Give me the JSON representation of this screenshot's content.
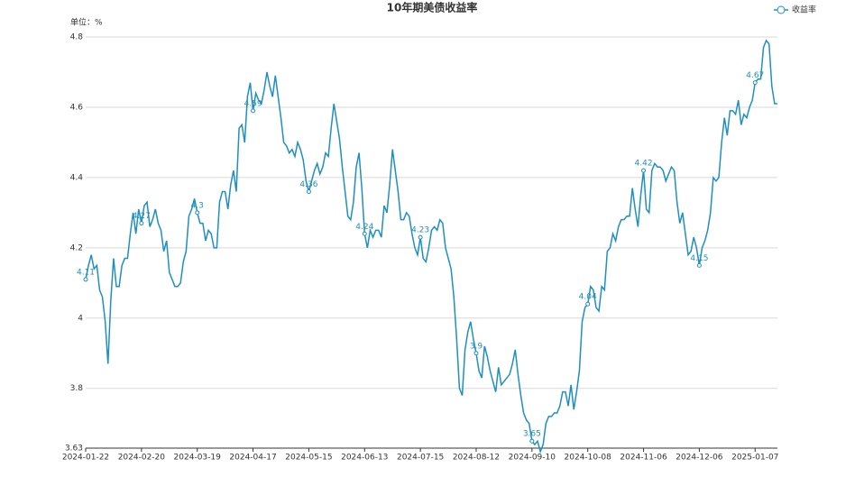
{
  "chart_data": {
    "type": "line",
    "title": "10年期美债收益率",
    "y_label": "单位：%",
    "categories": [
      "2024-01-22",
      null,
      null,
      null,
      null,
      null,
      null,
      null,
      null,
      null,
      null,
      null,
      null,
      null,
      null,
      null,
      null,
      null,
      null,
      null,
      "2024-02-20",
      null,
      null,
      null,
      null,
      null,
      null,
      null,
      null,
      null,
      null,
      null,
      null,
      null,
      null,
      null,
      null,
      null,
      null,
      null,
      "2024-03-19",
      null,
      null,
      null,
      null,
      null,
      null,
      null,
      null,
      null,
      null,
      null,
      null,
      null,
      null,
      null,
      null,
      null,
      null,
      null,
      "2024-04-17",
      null,
      null,
      null,
      null,
      null,
      null,
      null,
      null,
      null,
      null,
      null,
      null,
      null,
      null,
      null,
      null,
      null,
      null,
      null,
      "2024-05-15",
      null,
      null,
      null,
      null,
      null,
      null,
      null,
      null,
      null,
      null,
      null,
      null,
      null,
      null,
      null,
      null,
      null,
      null,
      null,
      "2024-06-13",
      null,
      null,
      null,
      null,
      null,
      null,
      null,
      null,
      null,
      null,
      null,
      null,
      null,
      null,
      null,
      null,
      null,
      null,
      null,
      "2024-07-15",
      null,
      null,
      null,
      null,
      null,
      null,
      null,
      null,
      null,
      null,
      null,
      null,
      null,
      null,
      null,
      null,
      null,
      null,
      null,
      "2024-08-12",
      null,
      null,
      null,
      null,
      null,
      null,
      null,
      null,
      null,
      null,
      null,
      null,
      null,
      null,
      null,
      null,
      null,
      null,
      null,
      "2024-09-10",
      null,
      null,
      null,
      null,
      null,
      null,
      null,
      null,
      null,
      null,
      null,
      null,
      null,
      null,
      null,
      null,
      null,
      null,
      null,
      "2024-10-08",
      null,
      null,
      null,
      null,
      null,
      null,
      null,
      null,
      null,
      null,
      null,
      null,
      null,
      null,
      null,
      null,
      null,
      null,
      null,
      "2024-11-06",
      null,
      null,
      null,
      null,
      null,
      null,
      null,
      null,
      null,
      null,
      null,
      null,
      null,
      null,
      null,
      null,
      null,
      null,
      null,
      "2024-12-06",
      null,
      null,
      null,
      null,
      null,
      null,
      null,
      null,
      null,
      null,
      null,
      null,
      null,
      null,
      null,
      null,
      null,
      null,
      null,
      "2025-01-07",
      null,
      null,
      null,
      null,
      null,
      null,
      null,
      null
    ],
    "series": [
      {
        "name": "收益率",
        "color": "#1f8fc0",
        "values": [
          4.11,
          4.15,
          4.18,
          4.14,
          4.15,
          4.08,
          4.06,
          3.99,
          3.87,
          4.05,
          4.17,
          4.09,
          4.09,
          4.15,
          4.17,
          4.17,
          4.24,
          4.3,
          4.24,
          4.31,
          4.27,
          4.32,
          4.33,
          4.26,
          4.28,
          4.31,
          4.27,
          4.25,
          4.19,
          4.22,
          4.13,
          4.11,
          4.09,
          4.09,
          4.1,
          4.16,
          4.19,
          4.29,
          4.31,
          4.34,
          4.3,
          4.27,
          4.27,
          4.22,
          4.25,
          4.24,
          4.2,
          4.2,
          4.33,
          4.36,
          4.36,
          4.31,
          4.38,
          4.42,
          4.36,
          4.54,
          4.55,
          4.5,
          4.63,
          4.67,
          4.59,
          4.64,
          4.62,
          4.61,
          4.65,
          4.7,
          4.66,
          4.63,
          4.69,
          4.63,
          4.57,
          4.5,
          4.49,
          4.47,
          4.48,
          4.46,
          4.5,
          4.48,
          4.45,
          4.39,
          4.36,
          4.39,
          4.42,
          4.44,
          4.41,
          4.43,
          4.47,
          4.46,
          4.54,
          4.61,
          4.56,
          4.51,
          4.43,
          4.36,
          4.29,
          4.28,
          4.33,
          4.43,
          4.47,
          4.37,
          4.24,
          4.2,
          4.25,
          4.23,
          4.25,
          4.25,
          4.23,
          4.32,
          4.3,
          4.38,
          4.48,
          4.42,
          4.36,
          4.28,
          4.28,
          4.3,
          4.29,
          4.24,
          4.2,
          4.18,
          4.23,
          4.17,
          4.16,
          4.2,
          4.25,
          4.26,
          4.25,
          4.28,
          4.27,
          4.2,
          4.17,
          4.14,
          4.06,
          3.94,
          3.8,
          3.78,
          3.91,
          3.96,
          3.99,
          3.94,
          3.9,
          3.85,
          3.83,
          3.92,
          3.89,
          3.85,
          3.82,
          3.79,
          3.86,
          3.81,
          3.82,
          3.83,
          3.84,
          3.87,
          3.91,
          3.84,
          3.78,
          3.73,
          3.71,
          3.7,
          3.65,
          3.64,
          3.65,
          3.62,
          3.64,
          3.7,
          3.72,
          3.72,
          3.73,
          3.73,
          3.75,
          3.79,
          3.79,
          3.75,
          3.81,
          3.74,
          3.79,
          3.85,
          3.99,
          4.03,
          4.04,
          4.09,
          4.08,
          4.03,
          4.02,
          4.09,
          4.08,
          4.19,
          4.2,
          4.24,
          4.22,
          4.26,
          4.28,
          4.28,
          4.29,
          4.29,
          4.37,
          4.31,
          4.26,
          4.35,
          4.42,
          4.31,
          4.3,
          4.42,
          4.44,
          4.43,
          4.43,
          4.42,
          4.39,
          4.41,
          4.43,
          4.42,
          4.33,
          4.27,
          4.3,
          4.24,
          4.18,
          4.19,
          4.23,
          4.2,
          4.15,
          4.2,
          4.22,
          4.25,
          4.3,
          4.4,
          4.39,
          4.4,
          4.5,
          4.57,
          4.52,
          4.59,
          4.59,
          4.58,
          4.62,
          4.55,
          4.58,
          4.57,
          4.6,
          4.62,
          4.67,
          4.68,
          4.68,
          4.77,
          4.79,
          4.78,
          4.66,
          4.61,
          4.61
        ]
      }
    ],
    "ylim": [
      3.63,
      4.8
    ],
    "yticks": [
      3.63,
      3.8,
      4,
      4.2,
      4.4,
      4.6,
      4.8
    ],
    "grid": true,
    "legend": "top-right"
  }
}
